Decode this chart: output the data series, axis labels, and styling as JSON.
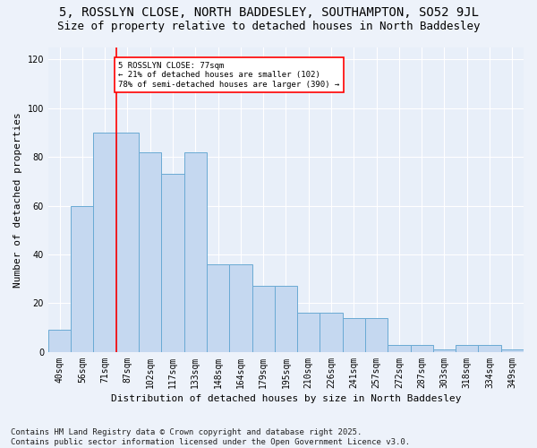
{
  "title1": "5, ROSSLYN CLOSE, NORTH BADDESLEY, SOUTHAMPTON, SO52 9JL",
  "title2": "Size of property relative to detached houses in North Baddesley",
  "xlabel": "Distribution of detached houses by size in North Baddesley",
  "ylabel": "Number of detached properties",
  "bar_color": "#c5d8f0",
  "bar_edge_color": "#6aaad4",
  "background_color": "#e8eff9",
  "categories": [
    "40sqm",
    "56sqm",
    "71sqm",
    "87sqm",
    "102sqm",
    "117sqm",
    "133sqm",
    "148sqm",
    "164sqm",
    "179sqm",
    "195sqm",
    "210sqm",
    "226sqm",
    "241sqm",
    "257sqm",
    "272sqm",
    "287sqm",
    "303sqm",
    "318sqm",
    "334sqm",
    "349sqm"
  ],
  "values": [
    9,
    60,
    90,
    90,
    82,
    73,
    82,
    36,
    36,
    27,
    27,
    16,
    16,
    14,
    14,
    3,
    3,
    1,
    3,
    3,
    1
  ],
  "ylim": [
    0,
    125
  ],
  "yticks": [
    0,
    20,
    40,
    60,
    80,
    100,
    120
  ],
  "red_line_index": 2.5,
  "annotation_text": "5 ROSSLYN CLOSE: 77sqm\n← 21% of detached houses are smaller (102)\n78% of semi-detached houses are larger (390) →",
  "footer": "Contains HM Land Registry data © Crown copyright and database right 2025.\nContains public sector information licensed under the Open Government Licence v3.0.",
  "title1_fontsize": 10,
  "title2_fontsize": 9,
  "ylabel_fontsize": 8,
  "xlabel_fontsize": 8,
  "tick_fontsize": 7,
  "footer_fontsize": 6.5
}
